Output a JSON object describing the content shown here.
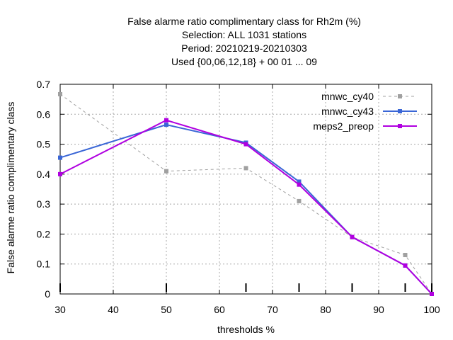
{
  "chart_data": {
    "type": "line",
    "title_lines": [
      "False alarme ratio complimentary class  for Rh2m (%)",
      "Selection: ALL   1031 stations",
      "Period: 20210219-20210303",
      "Used {00,06,12,18} + 00 01 ... 09"
    ],
    "xlabel": "thresholds %",
    "ylabel": "False alarme ratio complimentary class",
    "xlim": [
      30,
      100
    ],
    "ylim": [
      0,
      0.7
    ],
    "xticks": [
      30,
      40,
      50,
      60,
      70,
      80,
      90,
      100
    ],
    "yticks": [
      0,
      0.1,
      0.2,
      0.3,
      0.4,
      0.5,
      0.6,
      0.7
    ],
    "grid": true,
    "legend_position": "top-right",
    "threshold_markers": [
      30,
      50,
      65,
      75,
      85,
      95,
      100
    ],
    "series": [
      {
        "name": "mnwc_cy40",
        "color": "#a0a0a0",
        "dashed": true,
        "x": [
          30,
          50,
          65,
          75,
          85,
          95,
          100
        ],
        "y": [
          0.667,
          0.41,
          0.42,
          0.31,
          0.19,
          0.13,
          0.0
        ]
      },
      {
        "name": "mnwc_cy43",
        "color": "#3a66d6",
        "dashed": false,
        "x": [
          30,
          50,
          65,
          75,
          85,
          95,
          100
        ],
        "y": [
          0.455,
          0.565,
          0.505,
          0.375,
          0.19,
          0.095,
          0.0
        ]
      },
      {
        "name": "meps2_preop",
        "color": "#b000e0",
        "dashed": false,
        "x": [
          30,
          50,
          65,
          75,
          85,
          95,
          100
        ],
        "y": [
          0.4,
          0.58,
          0.5,
          0.365,
          0.19,
          0.095,
          0.0
        ]
      }
    ]
  }
}
